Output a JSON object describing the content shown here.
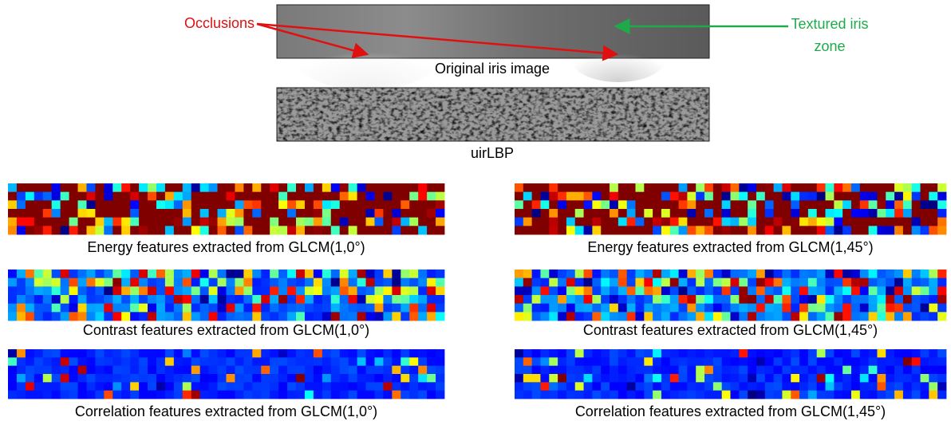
{
  "annotations": {
    "occlusions": "Occlusions",
    "textured_zone": [
      "Textured iris",
      "zone"
    ]
  },
  "images": {
    "original": "Original iris image",
    "uirlbp": "uirLBP"
  },
  "features": {
    "left": [
      "Energy features extracted from GLCM(1,0°)",
      "Contrast features extracted from GLCM(1,0°)",
      "Correlation features extracted from GLCM(1,0°)"
    ],
    "right": [
      "Energy features extracted from GLCM(1,45°)",
      "Contrast features extracted from GLCM(1,45°)",
      "Correlation features extracted from GLCM(1,45°)"
    ]
  }
}
